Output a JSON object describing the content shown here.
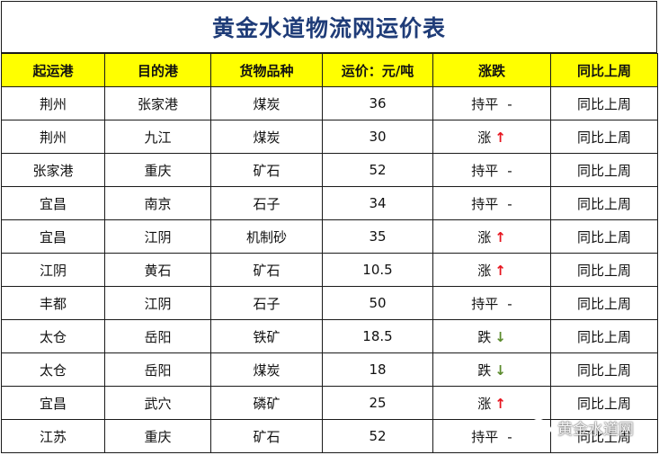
{
  "title": "黄金水道物流网运价表",
  "headers": [
    "起运港",
    "目的港",
    "货物品种",
    "运价：元/吨",
    "涨跌",
    "同比上周"
  ],
  "rows": [
    {
      "from": "荆州",
      "to": "张家港",
      "cargo": "煤炭",
      "price": "36",
      "trend": "持平",
      "arrow": "-",
      "dir": "flat",
      "compare": "同比上周"
    },
    {
      "from": "荆州",
      "to": "九江",
      "cargo": "煤炭",
      "price": "30",
      "trend": "涨",
      "arrow": "↑",
      "dir": "up",
      "compare": "同比上周"
    },
    {
      "from": "张家港",
      "to": "重庆",
      "cargo": "矿石",
      "price": "52",
      "trend": "持平",
      "arrow": "-",
      "dir": "flat",
      "compare": "同比上周"
    },
    {
      "from": "宜昌",
      "to": "南京",
      "cargo": "石子",
      "price": "34",
      "trend": "持平",
      "arrow": "-",
      "dir": "flat",
      "compare": "同比上周"
    },
    {
      "from": "宜昌",
      "to": "江阴",
      "cargo": "机制砂",
      "price": "35",
      "trend": "涨",
      "arrow": "↑",
      "dir": "up",
      "compare": "同比上周"
    },
    {
      "from": "江阴",
      "to": "黄石",
      "cargo": "矿石",
      "price": "10.5",
      "trend": "涨",
      "arrow": "↑",
      "dir": "up",
      "compare": "同比上周"
    },
    {
      "from": "丰都",
      "to": "江阴",
      "cargo": "石子",
      "price": "50",
      "trend": "持平",
      "arrow": "-",
      "dir": "flat",
      "compare": "同比上周"
    },
    {
      "from": "太仓",
      "to": "岳阳",
      "cargo": "铁矿",
      "price": "18.5",
      "trend": "跌",
      "arrow": "↓",
      "dir": "down",
      "compare": "同比上周"
    },
    {
      "from": "太仓",
      "to": "岳阳",
      "cargo": "煤炭",
      "price": "18",
      "trend": "跌",
      "arrow": "↓",
      "dir": "down",
      "compare": "同比上周"
    },
    {
      "from": "宜昌",
      "to": "武穴",
      "cargo": "磷矿",
      "price": "25",
      "trend": "涨",
      "arrow": "↑",
      "dir": "up",
      "compare": "同比上周"
    },
    {
      "from": "江苏",
      "to": "重庆",
      "cargo": "矿石",
      "price": "52",
      "trend": "持平",
      "arrow": "-",
      "dir": "flat",
      "compare": "同比上周"
    }
  ],
  "colors": {
    "title": "#1f3c78",
    "header_bg": "#ffff00",
    "up": "#e6141e",
    "down": "#5a8a2c"
  },
  "watermark": {
    "icon": "wechat-icon",
    "text": "黄金水道网"
  }
}
